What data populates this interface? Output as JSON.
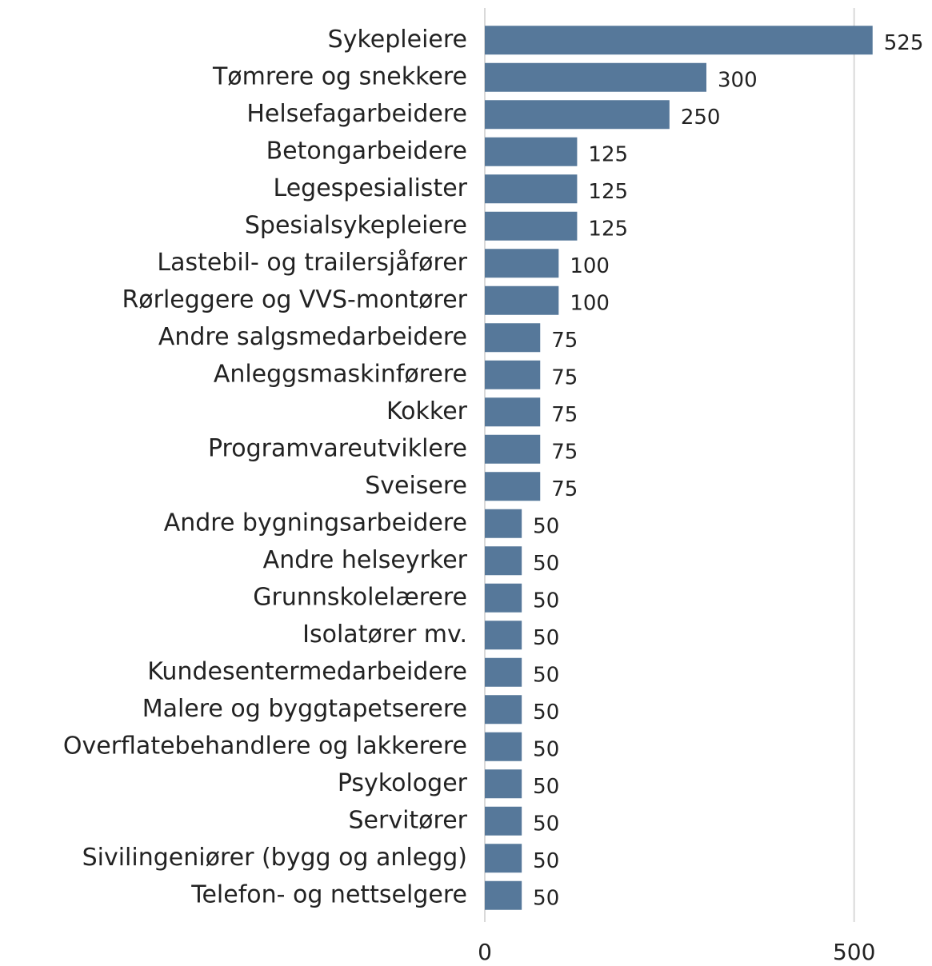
{
  "chart_data": {
    "type": "bar",
    "orientation": "horizontal",
    "categories": [
      "Sykepleiere",
      "Tømrere og snekkere",
      "Helsefagarbeidere",
      "Betongarbeidere",
      "Legespesialister",
      "Spesialsykepleiere",
      "Lastebil- og trailersjåfører",
      "Rørleggere og VVS-montører",
      "Andre salgsmedarbeidere",
      "Anleggsmaskinførere",
      "Kokker",
      "Programvareutviklere",
      "Sveisere",
      "Andre bygningsarbeidere",
      "Andre helseyrker",
      "Grunnskolelærere",
      "Isolatører mv.",
      "Kundesentermedarbeidere",
      "Malere og byggtapetserere",
      "Overflatebehandlere og lakkerere",
      "Psykologer",
      "Servitører",
      "Sivilingeniører (bygg og anlegg)",
      "Telefon- og nettselgere"
    ],
    "values": [
      525,
      300,
      250,
      125,
      125,
      125,
      100,
      100,
      75,
      75,
      75,
      75,
      75,
      50,
      50,
      50,
      50,
      50,
      50,
      50,
      50,
      50,
      50,
      50
    ],
    "color": "#56789a",
    "xlim": [
      0,
      600
    ],
    "xticks": [
      0,
      500
    ],
    "grid": true
  }
}
